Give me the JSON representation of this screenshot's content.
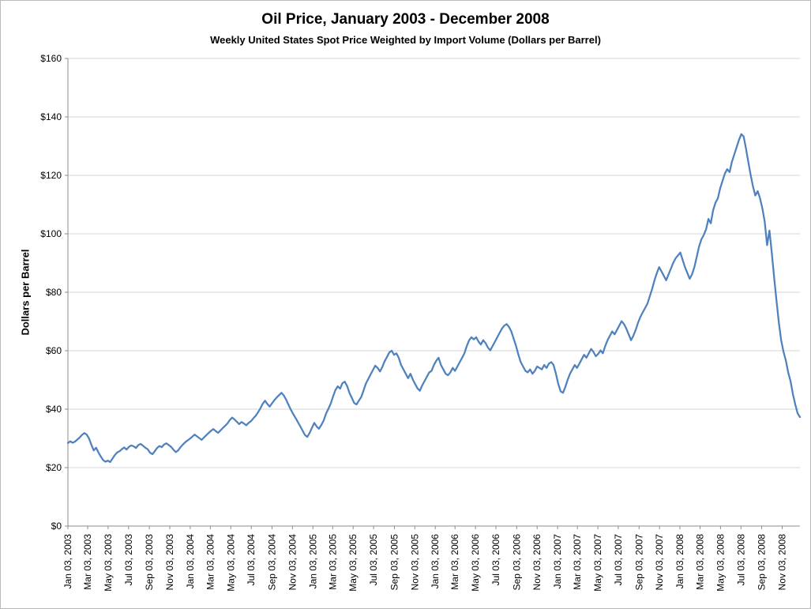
{
  "chart_data": {
    "type": "line",
    "title": "Oil Price, January 2003 - December 2008",
    "subtitle": "Weekly United States Spot Price Weighted by Import Volume (Dollars per Barrel)",
    "ylabel": "Dollars per Barrel",
    "xlabel": "",
    "ylim": [
      0,
      160
    ],
    "ytick_step": 20,
    "ytick_labels": [
      "$0",
      "$20",
      "$40",
      "$60",
      "$80",
      "$100",
      "$120",
      "$140",
      "$160"
    ],
    "x_tick_labels": [
      "Jan 03, 2003",
      "Mar 03, 2003",
      "May 03, 2003",
      "Jul 03, 2003",
      "Sep 03, 2003",
      "Nov 03, 2003",
      "Jan 03, 2004",
      "Mar 03, 2004",
      "May 03, 2004",
      "Jul 03, 2004",
      "Sep 03, 2004",
      "Nov 03, 2004",
      "Jan 03, 2005",
      "Mar 03, 2005",
      "May 03, 2005",
      "Jul 03, 2005",
      "Sep 03, 2005",
      "Nov 03, 2005",
      "Jan 03, 2006",
      "Mar 03, 2006",
      "May 03, 2006",
      "Jul 03, 2006",
      "Sep 03, 2006",
      "Nov 03, 2006",
      "Jan 03, 2007",
      "Mar 03, 2007",
      "May 03, 2007",
      "Jul 03, 2007",
      "Sep 03, 2007",
      "Nov 03, 2007",
      "Jan 03, 2008",
      "Mar 03, 2008",
      "May 03, 2008",
      "Jul 03, 2008",
      "Sep 03, 2008",
      "Nov 03, 2008"
    ],
    "x_interval": "weekly",
    "grid": true,
    "legend_position": "none",
    "line_color": "#4F81BD",
    "grid_color": "#D4D4D4",
    "axis_color": "#8C8C8C",
    "text_color": "#000000",
    "series": [
      {
        "name": "Weekly United States Spot Price Weighted by Import Volume",
        "values": [
          28.4,
          29.0,
          28.5,
          28.9,
          29.6,
          30.3,
          31.2,
          31.8,
          31.3,
          30.0,
          27.8,
          25.9,
          26.8,
          25.2,
          23.8,
          22.6,
          22.0,
          22.4,
          21.9,
          23.1,
          24.3,
          25.2,
          25.6,
          26.3,
          26.9,
          26.2,
          27.1,
          27.6,
          27.3,
          26.7,
          27.7,
          28.1,
          27.5,
          26.8,
          26.3,
          25.1,
          24.6,
          25.6,
          26.7,
          27.4,
          27.0,
          27.9,
          28.3,
          27.7,
          27.1,
          26.1,
          25.3,
          25.9,
          27.0,
          27.9,
          28.7,
          29.3,
          29.9,
          30.6,
          31.3,
          30.7,
          30.1,
          29.5,
          30.3,
          31.1,
          31.9,
          32.6,
          33.2,
          32.5,
          31.9,
          32.7,
          33.5,
          34.3,
          35.1,
          36.3,
          37.1,
          36.5,
          35.7,
          34.9,
          35.6,
          35.1,
          34.5,
          35.3,
          35.9,
          36.8,
          37.7,
          38.9,
          40.2,
          41.8,
          42.9,
          41.8,
          40.9,
          42.0,
          43.1,
          44.0,
          44.8,
          45.6,
          44.7,
          43.3,
          41.5,
          39.8,
          38.4,
          37.0,
          35.6,
          34.2,
          32.7,
          31.2,
          30.5,
          31.8,
          33.6,
          35.3,
          34.1,
          33.3,
          34.6,
          36.1,
          38.4,
          40.1,
          41.9,
          44.3,
          46.5,
          47.8,
          47.0,
          48.9,
          49.4,
          47.9,
          45.6,
          43.9,
          42.1,
          41.6,
          42.9,
          44.1,
          46.4,
          48.7,
          50.3,
          51.9,
          53.4,
          54.9,
          54.1,
          52.9,
          54.4,
          56.4,
          57.9,
          59.4,
          60.0,
          58.6,
          59.1,
          57.6,
          55.1,
          53.6,
          52.1,
          50.6,
          52.1,
          50.1,
          48.6,
          47.1,
          46.3,
          48.1,
          49.6,
          51.1,
          52.6,
          53.1,
          55.1,
          56.6,
          57.6,
          55.1,
          53.6,
          52.1,
          51.6,
          52.6,
          54.1,
          53.1,
          54.6,
          56.1,
          57.6,
          59.1,
          61.6,
          63.6,
          64.6,
          63.9,
          64.6,
          63.1,
          62.1,
          63.6,
          62.6,
          61.1,
          60.1,
          61.6,
          63.1,
          64.6,
          66.1,
          67.6,
          68.6,
          69.1,
          68.1,
          66.6,
          64.1,
          61.6,
          58.6,
          56.1,
          54.6,
          53.1,
          52.6,
          53.6,
          52.1,
          53.1,
          54.6,
          54.1,
          53.6,
          55.1,
          54.1,
          55.6,
          56.1,
          55.1,
          52.1,
          48.6,
          46.1,
          45.6,
          47.6,
          50.1,
          52.1,
          53.6,
          55.1,
          54.1,
          55.6,
          57.1,
          58.6,
          57.6,
          59.1,
          60.6,
          59.6,
          58.1,
          58.9,
          60.1,
          59.1,
          61.6,
          63.6,
          65.1,
          66.6,
          65.6,
          67.1,
          68.6,
          70.1,
          69.1,
          67.6,
          65.6,
          63.6,
          65.1,
          67.1,
          69.6,
          71.6,
          73.1,
          74.6,
          76.1,
          78.6,
          81.1,
          84.1,
          86.6,
          88.6,
          87.1,
          85.6,
          84.1,
          86.1,
          88.1,
          90.1,
          91.6,
          92.6,
          93.6,
          91.1,
          88.6,
          86.6,
          84.6,
          86.1,
          88.6,
          92.1,
          95.6,
          98.1,
          99.6,
          101.6,
          105.1,
          103.6,
          108.1,
          110.6,
          112.1,
          115.6,
          118.1,
          120.6,
          122.1,
          121.1,
          124.6,
          127.1,
          129.6,
          132.1,
          134.1,
          133.3,
          129.1,
          124.6,
          120.1,
          116.1,
          113.1,
          114.6,
          112.1,
          108.6,
          104.1,
          96.1,
          101.1,
          93.6,
          85.1,
          77.1,
          69.6,
          63.6,
          59.6,
          56.6,
          52.6,
          49.6,
          45.1,
          41.6,
          38.6,
          37.3
        ]
      }
    ]
  }
}
